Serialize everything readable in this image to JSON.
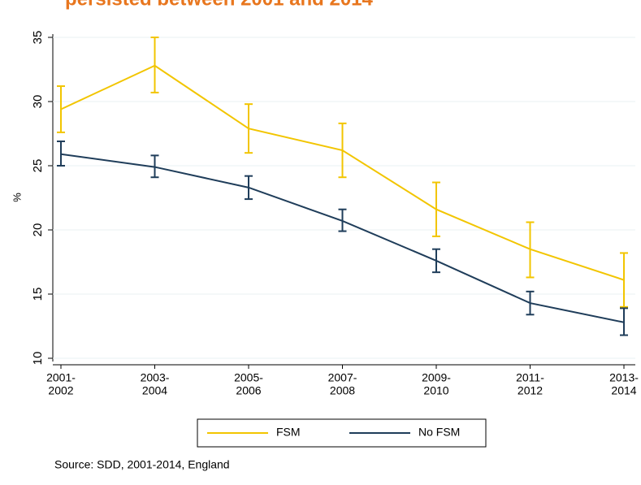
{
  "chart_data": {
    "type": "line",
    "title": "persisted between 2001 and 2014",
    "y_label": "%",
    "source": "Source: SDD, 2001-2014, England",
    "categories": [
      [
        "2001-",
        "2002"
      ],
      [
        "2003-",
        "2004"
      ],
      [
        "2005-",
        "2006"
      ],
      [
        "2007-",
        "2008"
      ],
      [
        "2009-",
        "2010"
      ],
      [
        "2011-",
        "2012"
      ],
      [
        "2013-",
        "2014"
      ]
    ],
    "series": [
      {
        "name": "FSM",
        "color": "#f2c500",
        "values": [
          29.4,
          32.8,
          27.9,
          26.2,
          21.6,
          18.5,
          16.1
        ],
        "lower": [
          27.6,
          30.7,
          26.0,
          24.1,
          19.5,
          16.3,
          14.0
        ],
        "upper": [
          31.2,
          35.0,
          29.8,
          28.3,
          23.7,
          20.6,
          18.2
        ]
      },
      {
        "name": "No FSM",
        "color": "#1f3d5a",
        "values": [
          25.9,
          24.9,
          23.3,
          20.7,
          17.6,
          14.3,
          12.8
        ],
        "lower": [
          25.0,
          24.1,
          22.4,
          19.9,
          16.7,
          13.4,
          11.8
        ],
        "upper": [
          26.9,
          25.8,
          24.2,
          21.6,
          18.5,
          15.2,
          13.9
        ]
      }
    ],
    "ylim": [
      10,
      35
    ],
    "yticks": [
      10,
      15,
      20,
      25,
      30,
      35
    ],
    "grid": true
  }
}
